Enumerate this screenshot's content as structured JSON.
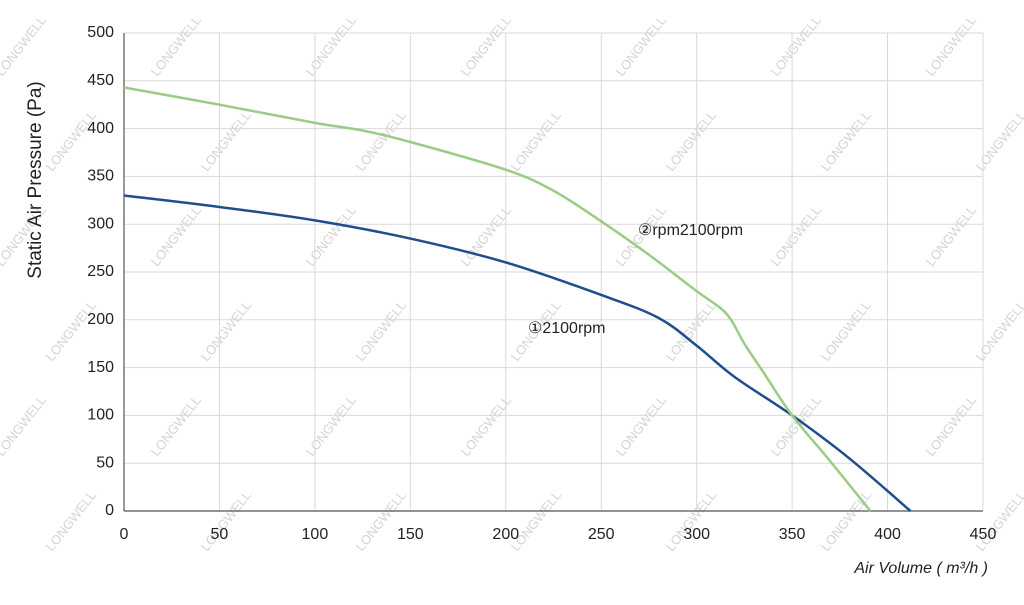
{
  "chart_data": {
    "type": "line",
    "y_label": "Static Air Pressure  (Pa)",
    "x_label": "Air Volume ( m³/h )",
    "watermark": "LONGWELL",
    "grid": true,
    "xlim": [
      0,
      450
    ],
    "xticks": [
      0,
      50,
      100,
      150,
      200,
      250,
      300,
      350,
      400,
      450
    ],
    "ylim": [
      0,
      500
    ],
    "yticks": [
      0,
      50,
      100,
      150,
      200,
      250,
      300,
      350,
      400,
      450,
      500
    ],
    "series": [
      {
        "name": "①2100rpm",
        "color": "#1f4e8f",
        "x": [
          0,
          50,
          100,
          150,
          200,
          250,
          280,
          300,
          320,
          350,
          380,
          412
        ],
        "values": [
          330,
          318,
          304,
          285,
          260,
          226,
          202,
          173,
          140,
          100,
          55,
          0
        ]
      },
      {
        "name": "②rpm2100rpm",
        "color": "#9ccb86",
        "x": [
          0,
          50,
          100,
          125,
          150,
          200,
          225,
          250,
          275,
          300,
          312,
          318,
          325,
          335,
          350,
          370,
          391
        ],
        "values": [
          443,
          425,
          406,
          398,
          386,
          357,
          335,
          303,
          268,
          230,
          213,
          200,
          175,
          145,
          100,
          52,
          0
        ]
      }
    ]
  }
}
